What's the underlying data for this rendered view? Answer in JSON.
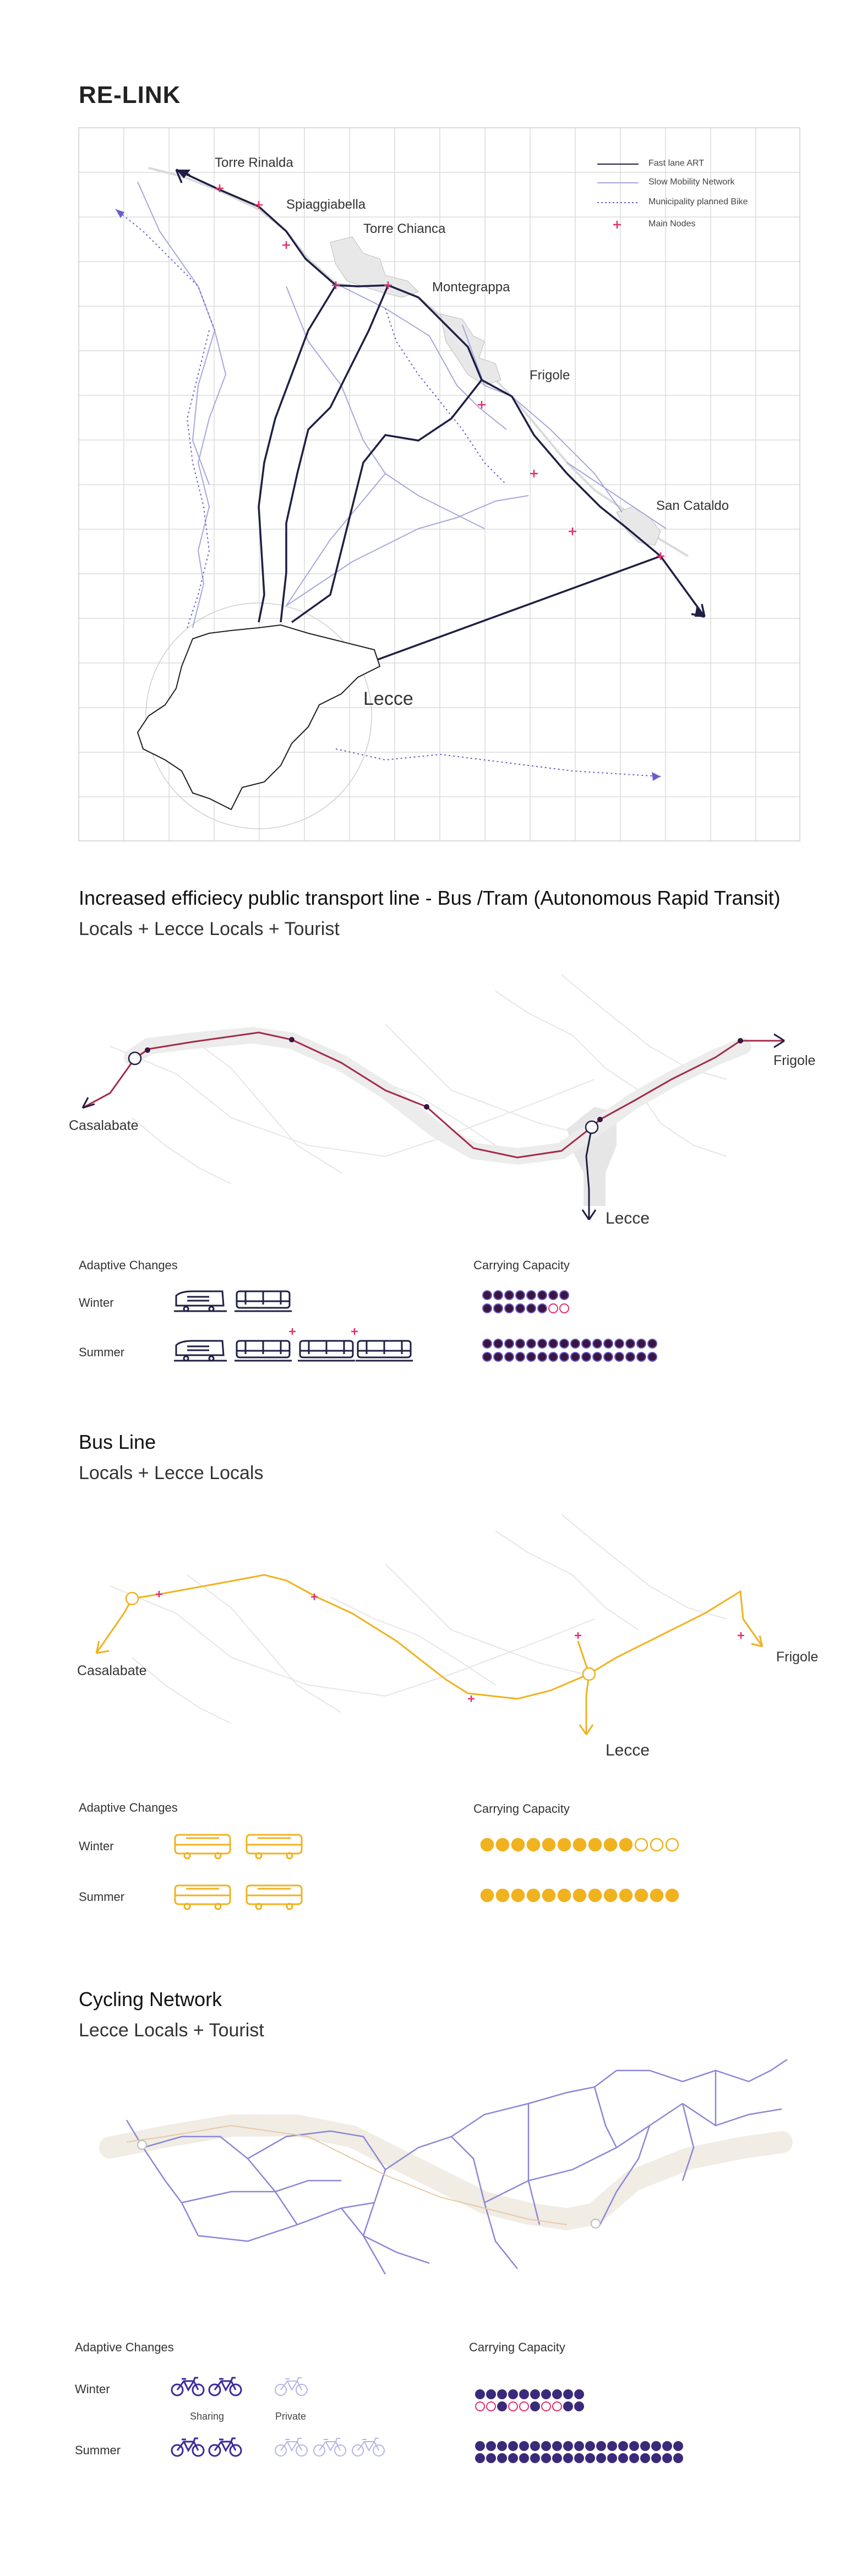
{
  "title": "RE-LINK",
  "map": {
    "places": {
      "torre_rinalda": "Torre Rinalda",
      "spiaggiabella": "Spiaggiabella",
      "torre_chianca": "Torre Chianca",
      "montegrappa": "Montegrappa",
      "frigole": "Frigole",
      "san_cataldo": "San Cataldo",
      "lecce": "Lecce"
    },
    "legend": {
      "fast_lane": "Fast lane ART",
      "slow_mobility": "Slow Mobility Network",
      "municipality_bike": "Municipality planned Bike",
      "main_nodes": "Main Nodes"
    }
  },
  "sections": {
    "art": {
      "title": "Increased efficiecy public transport line - Bus /Tram (Autonomous Rapid Transit)",
      "subtitle": "Locals + Lecce Locals + Tourist",
      "labels": {
        "left": "Casalabate",
        "right": "Frigole",
        "center": "Lecce"
      },
      "adaptive_title": "Adaptive Changes",
      "capacity_title": "Carrying Capacity",
      "winter": "Winter",
      "summer": "Summer"
    },
    "bus": {
      "title": "Bus Line",
      "subtitle": "Locals + Lecce Locals",
      "labels": {
        "left": "Casalabate",
        "right": "Frigole",
        "center": "Lecce"
      },
      "adaptive_title": "Adaptive Changes",
      "capacity_title": "Carrying Capacity",
      "winter": "Winter",
      "summer": "Summer"
    },
    "cycle": {
      "title": "Cycling Network",
      "subtitle": "Lecce Locals + Tourist",
      "adaptive_title": "Adaptive Changes",
      "capacity_title": "Carrying Capacity",
      "winter": "Winter",
      "summer": "Summer",
      "sharing": "Sharing",
      "private": "Private"
    }
  },
  "capacity": {
    "art_winter": {
      "filled": 14,
      "empty": 2
    },
    "art_summer": {
      "filled": 32,
      "empty": 0
    },
    "bus_winter": {
      "filled": 10,
      "empty": 3
    },
    "bus_summer": {
      "filled": 13,
      "empty": 0
    },
    "cycle_winter": {
      "filled": 14,
      "empty": 6
    },
    "cycle_summer": {
      "filled": 38,
      "empty": 0
    }
  },
  "colors": {
    "navy": "#2a2a5e",
    "crimson": "#a52a4a",
    "plum": "#3a1540",
    "yellow": "#f0b21f",
    "violet": "#6a5fc8",
    "lavender": "#b4b4e6",
    "pink": "#e0306a",
    "grid": "#dcdcdc"
  }
}
